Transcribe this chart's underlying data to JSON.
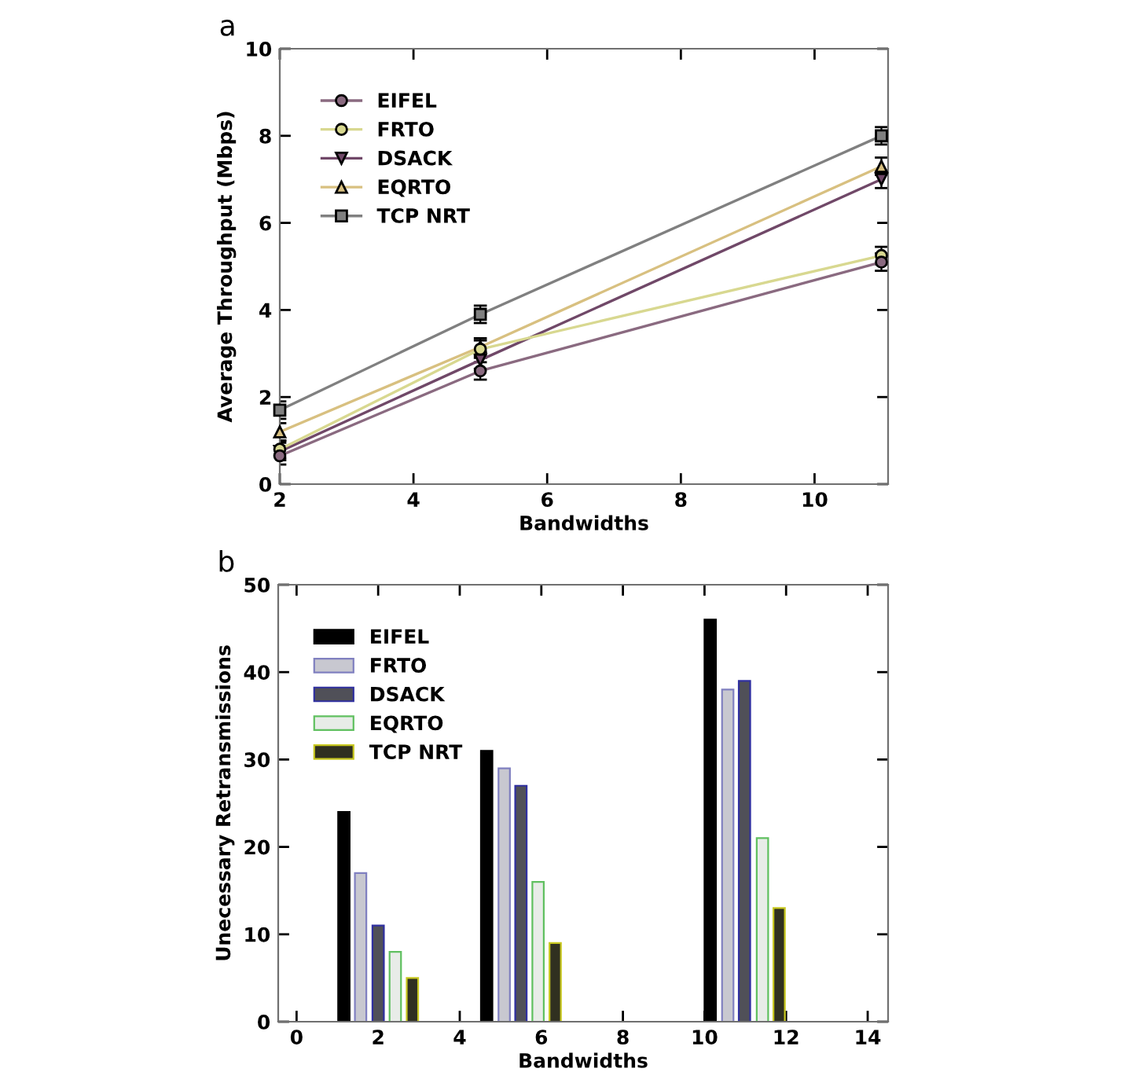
{
  "chart_data": [
    {
      "type": "line",
      "title": "a",
      "xlabel": "Bandwidths",
      "ylabel": "Average Throughput (Mbps)",
      "x": [
        2,
        5,
        11
      ],
      "xlim": [
        2,
        11.1
      ],
      "xticks": [
        2,
        4,
        6,
        8,
        10
      ],
      "ylim": [
        0,
        10
      ],
      "yticks": [
        0,
        2,
        4,
        6,
        8,
        10
      ],
      "legend": "top left",
      "grid": false,
      "series": [
        {
          "name": "EIFEL",
          "color": "#8a6a80",
          "marker": "circle",
          "values": [
            0.65,
            2.6,
            5.1
          ],
          "errors": [
            0.2,
            0.2,
            0.2
          ]
        },
        {
          "name": "FRTO",
          "color": "#d8d890",
          "marker": "circle",
          "values": [
            0.8,
            3.1,
            5.25
          ],
          "errors": [
            0.2,
            0.2,
            0.2
          ]
        },
        {
          "name": "DSACK",
          "color": "#704868",
          "marker": "triangle_down",
          "values": [
            0.75,
            2.85,
            7.0
          ],
          "errors": [
            0.2,
            0.2,
            0.2
          ]
        },
        {
          "name": "EQRTO",
          "color": "#d8c080",
          "marker": "triangle",
          "values": [
            1.2,
            3.15,
            7.3
          ],
          "errors": [
            0.2,
            0.2,
            0.2
          ]
        },
        {
          "name": "TCP NRT",
          "color": "#808080",
          "marker": "square",
          "values": [
            1.7,
            3.9,
            8.0
          ],
          "errors": [
            0.2,
            0.2,
            0.2
          ]
        }
      ]
    },
    {
      "type": "bar",
      "title": "b",
      "xlabel": "Bandwidths",
      "ylabel": "Unecessary Retransmissions",
      "xlim": [
        -0.45,
        14.5
      ],
      "xticks": [
        0,
        2,
        4,
        6,
        8,
        10,
        12,
        14
      ],
      "ylim": [
        0,
        50
      ],
      "yticks": [
        0,
        10,
        20,
        30,
        40,
        50
      ],
      "legend": "top left",
      "grid": false,
      "series": [
        {
          "name": "EIFEL",
          "color": "#000000",
          "x": [
            1.16,
            4.66,
            10.14
          ],
          "values": [
            24,
            31,
            46
          ]
        },
        {
          "name": "FRTO",
          "color": "#c8c8d0",
          "x": [
            1.57,
            5.09,
            10.57
          ],
          "values": [
            17,
            29,
            38
          ]
        },
        {
          "name": "DSACK",
          "color": "#505058",
          "x": [
            2.0,
            5.5,
            10.98
          ],
          "values": [
            11,
            27,
            39
          ]
        },
        {
          "name": "EQRTO",
          "color": "#e8ece8",
          "x": [
            2.42,
            5.92,
            11.42
          ],
          "values": [
            8,
            16,
            21
          ]
        },
        {
          "name": "TCP NRT",
          "color": "#303020",
          "x": [
            2.84,
            6.34,
            11.83
          ],
          "values": [
            5,
            9,
            13
          ]
        }
      ]
    }
  ]
}
